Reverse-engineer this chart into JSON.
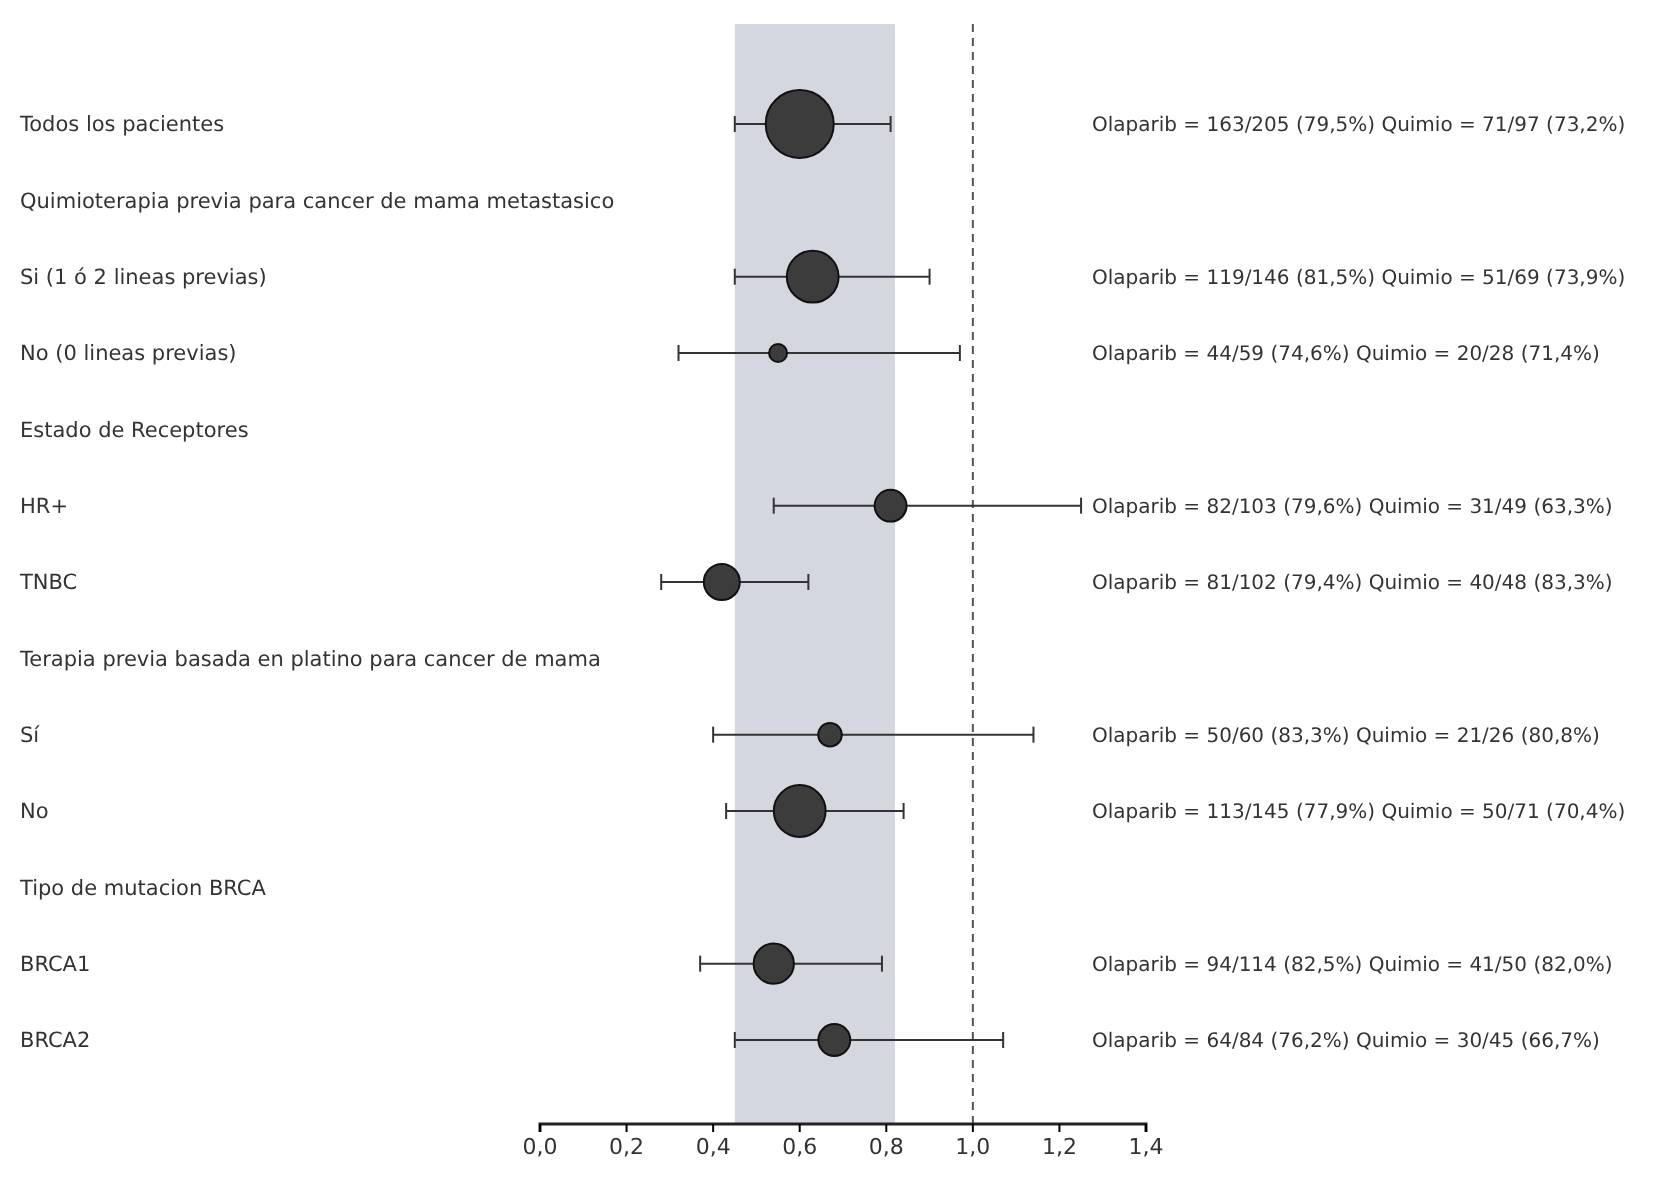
{
  "chart_data": {
    "type": "bubble",
    "orientation": "horizontal",
    "categories": [
      "Todos los pacientes",
      "Quimioterapia previa para cancer de mama metastasico",
      "Si (1 ó 2 lineas previas)",
      "No (0 lineas previas)",
      "Estado de Receptores",
      "HR+",
      "TNBC",
      "Terapia previa basada en platino para cancer de mama",
      "Sí",
      "No",
      "Tipo de mutacion BRCA",
      "BRCA1",
      "BRCA2"
    ],
    "values": [
      0.6,
      null,
      0.63,
      0.55,
      null,
      0.81,
      0.42,
      null,
      0.67,
      0.6,
      null,
      0.54,
      0.68
    ],
    "errors": [
      [
        0.45,
        0.81
      ],
      null,
      [
        0.45,
        0.9
      ],
      [
        0.32,
        0.97
      ],
      null,
      [
        0.54,
        1.25
      ],
      [
        0.28,
        0.62
      ],
      null,
      [
        0.4,
        1.14
      ],
      [
        0.43,
        0.84
      ],
      null,
      [
        0.37,
        0.79
      ],
      [
        0.45,
        1.07
      ]
    ],
    "sizes": [
      1,
      null,
      0.58,
      0.07,
      null,
      0.22,
      0.28,
      null,
      0.12,
      0.58,
      null,
      0.35,
      0.22
    ],
    "color": "#3c3c3c",
    "marker": "circle",
    "grid": false,
    "xlim": [
      0,
      1.4
    ],
    "xticks": [
      {
        "value": 0,
        "label": "0,0"
      },
      {
        "value": 0.2,
        "label": "0,2"
      },
      {
        "value": 0.4,
        "label": "0,4"
      },
      {
        "value": 0.6,
        "label": "0,6"
      },
      {
        "value": 0.8,
        "label": "0,8"
      },
      {
        "value": 1.0,
        "label": "1,0"
      },
      {
        "value": 1.2,
        "label": "1,2"
      },
      {
        "value": 1.4,
        "label": "1,4"
      }
    ],
    "bands": [
      {
        "axis": "x",
        "from": 0.45,
        "to": 0.82,
        "color": "#d4d7e0"
      }
    ],
    "ref_lines": [
      {
        "axis": "x",
        "value": 1.0,
        "line_style": "dashed",
        "color": "#555555"
      }
    ],
    "annotations": [
      "Olaparib = 163/205 (79,5%) Quimio = 71/97 (73,2%)",
      "Olaparib = 119/146 (81,5%) Quimio = 51/69 (73,9%)",
      "Olaparib = 44/59 (74,6%) Quimio = 20/28 (71,4%)",
      "Olaparib = 82/103 (79,6%) Quimio = 31/49 (63,3%)",
      "Olaparib = 81/102 (79,4%) Quimio = 40/48 (83,3%)",
      "Olaparib = 50/60 (83,3%) Quimio = 21/26 (80,8%)",
      "Olaparib = 113/145 (77,9%) Quimio = 50/71 (70,4%)",
      "Olaparib = 94/114 (82,5%) Quimio = 41/50 (82,0%)",
      "Olaparib = 64/84 (76,2%) Quimio = 30/45 (66,7%)"
    ]
  }
}
